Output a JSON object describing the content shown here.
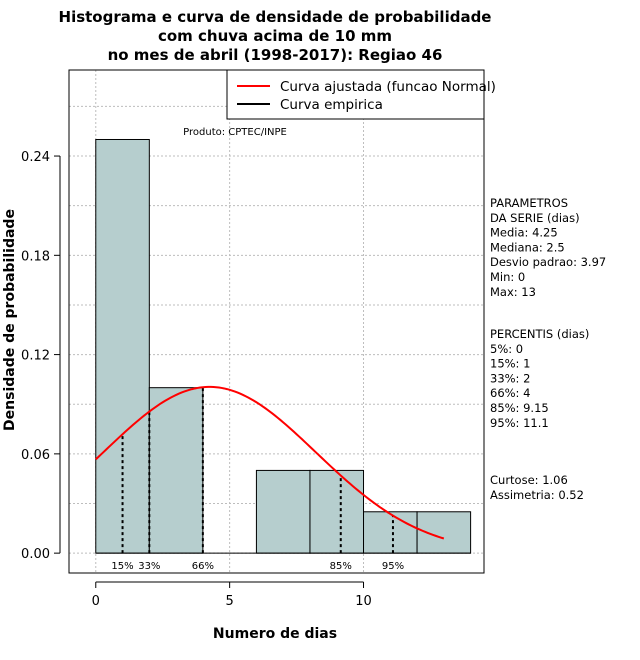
{
  "chart_data": {
    "type": "bar",
    "title_lines": [
      "Histograma e curva de densidade de probabilidade",
      "com chuva acima de 10 mm",
      "no mes de abril (1998-2017): Regiao 46"
    ],
    "xlabel": "Numero de dias",
    "ylabel": "Densidade de probabilidade",
    "xlim": [
      -1,
      14.5
    ],
    "ylim": [
      -0.012,
      0.292
    ],
    "x_ticks": [
      0,
      5,
      10
    ],
    "y_ticks": [
      0.0,
      0.06,
      0.12,
      0.18,
      0.24
    ],
    "y_tick_labels": [
      "0.00",
      "0.06",
      "0.12",
      "0.18",
      "0.24"
    ],
    "grid": true,
    "bins": [
      {
        "x0": 0,
        "x1": 2,
        "density": 0.25
      },
      {
        "x0": 2,
        "x1": 4,
        "density": 0.1
      },
      {
        "x0": 4,
        "x1": 6,
        "density": 0.0
      },
      {
        "x0": 6,
        "x1": 8,
        "density": 0.05
      },
      {
        "x0": 8,
        "x1": 10,
        "density": 0.05
      },
      {
        "x0": 10,
        "x1": 12,
        "density": 0.025
      },
      {
        "x0": 12,
        "x1": 14,
        "density": 0.025
      }
    ],
    "bar_color": "#b6cece",
    "fitted_curve": {
      "name": "Curva ajustada (funcao Normal)",
      "color": "#ff0000",
      "mean": 4.25,
      "sd": 3.97,
      "x_range": [
        0,
        13
      ]
    },
    "empirical_curve": {
      "name": "Curva empirica",
      "color": "#000000"
    },
    "percentile_markers": [
      {
        "label": "15%",
        "x": 1
      },
      {
        "label": "33%",
        "x": 2
      },
      {
        "label": "66%",
        "x": 4
      },
      {
        "label": "85%",
        "x": 9.15
      },
      {
        "label": "95%",
        "x": 11.1
      }
    ],
    "legend_position": "top-right",
    "source_note": "Produto: CPTEC/INPE"
  },
  "side_panel": {
    "params_lines": [
      "PARAMETROS",
      "DA SERIE (dias)",
      "   Media: 4.25",
      "   Mediana: 2.5",
      "   Desvio padrao: 3.97",
      "   Min: 0",
      "   Max: 13"
    ],
    "percentis_lines": [
      "PERCENTIS (dias)",
      "   5%: 0",
      "   15%: 1",
      "   33%: 2",
      "   66%: 4",
      "   85%: 9.15",
      "   95%: 11.1"
    ],
    "stats_lines": [
      "   Curtose: 1.06",
      "Assimetria: 0.52"
    ]
  }
}
